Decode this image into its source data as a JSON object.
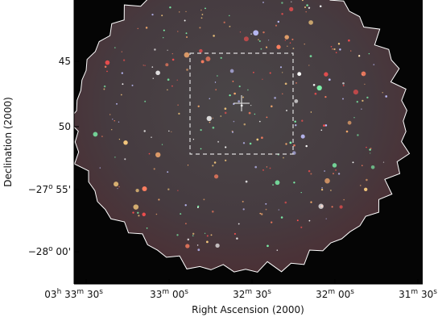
{
  "axes": {
    "x_label": "Right Ascension (2000)",
    "y_label": "Declination (2000)",
    "x_ticks": [
      {
        "parts": [
          [
            "03",
            "h"
          ],
          [
            "33",
            "m"
          ],
          [
            "30",
            "s"
          ]
        ]
      },
      {
        "parts": [
          [
            "33",
            "m"
          ],
          [
            "00",
            "s"
          ]
        ]
      },
      {
        "parts": [
          [
            "32",
            "m"
          ],
          [
            "30",
            "s"
          ]
        ]
      },
      {
        "parts": [
          [
            "32",
            "m"
          ],
          [
            "00",
            "s"
          ]
        ]
      },
      {
        "parts": [
          [
            "31",
            "m"
          ],
          [
            "30",
            "s"
          ]
        ]
      }
    ],
    "y_ticks": [
      {
        "parts": [
          [
            "45",
            ""
          ]
        ]
      },
      {
        "parts": [
          [
            "50",
            ""
          ]
        ]
      },
      {
        "parts": [
          [
            "−27",
            "o"
          ],
          [
            " 55'",
            ""
          ]
        ]
      },
      {
        "parts": [
          [
            "−28",
            "o"
          ],
          [
            " 00'",
            ""
          ]
        ]
      }
    ]
  }
}
